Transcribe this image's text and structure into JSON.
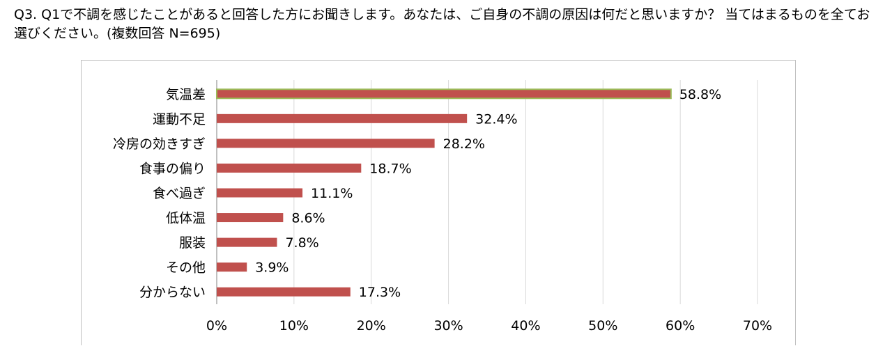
{
  "question": "Q3. Q1で不調を感じたことがあると回答した方にお聞きします。あなたは、ご自身の不調の原因は何だと思いますか？ 当てはまるものを全てお選びください。(複数回答 N=695)",
  "chart_data": {
    "type": "bar",
    "orientation": "horizontal",
    "categories": [
      "気温差",
      "運動不足",
      "冷房の効きすぎ",
      "食事の偏り",
      "食べ過ぎ",
      "低体温",
      "服装",
      "その他",
      "分からない"
    ],
    "values": [
      58.8,
      32.4,
      28.2,
      18.7,
      11.1,
      8.6,
      7.8,
      3.9,
      17.3
    ],
    "value_labels": [
      "58.8%",
      "32.4%",
      "28.2%",
      "18.7%",
      "11.1%",
      "8.6%",
      "7.8%",
      "3.9%",
      "17.3%"
    ],
    "xlim": [
      0,
      70
    ],
    "x_ticks": [
      0,
      10,
      20,
      30,
      40,
      50,
      60,
      70
    ],
    "x_tick_labels": [
      "0%",
      "10%",
      "20%",
      "30%",
      "40%",
      "50%",
      "60%",
      "70%"
    ],
    "grid": true,
    "bar_color": "#c0504d",
    "highlight_index": 0,
    "highlight_color": "#9bbb59"
  }
}
